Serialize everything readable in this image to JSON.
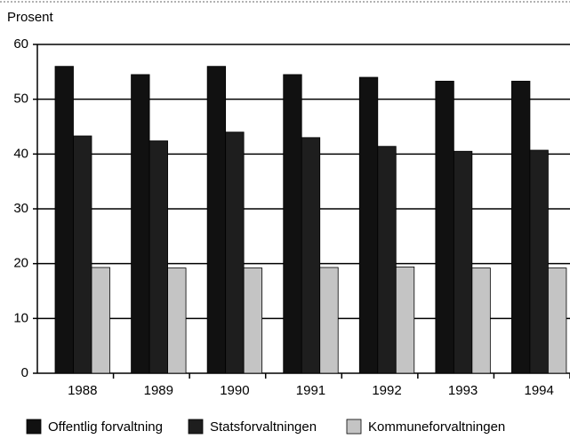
{
  "chart_data": {
    "type": "bar",
    "y_axis_label": "Prosent",
    "categories": [
      "1988",
      "1989",
      "1990",
      "1991",
      "1992",
      "1993",
      "1994"
    ],
    "series": [
      {
        "name": "Offentlig forvaltning",
        "color": "#111111",
        "values": [
          56,
          54.5,
          56,
          54.5,
          54,
          53.3,
          53.3
        ]
      },
      {
        "name": "Statsforvaltningen",
        "color": "#1e1e1e",
        "values": [
          43.3,
          42.4,
          44,
          43,
          41.4,
          40.5,
          40.7
        ]
      },
      {
        "name": "Kommuneforvaltningen",
        "color": "#c4c4c4",
        "values": [
          19.3,
          19.2,
          19.2,
          19.3,
          19.4,
          19.2,
          19.2
        ]
      }
    ],
    "ylim": [
      0,
      60
    ],
    "yticks": [
      0,
      10,
      20,
      30,
      40,
      50,
      60
    ],
    "grid": true,
    "legend": "bottom"
  }
}
